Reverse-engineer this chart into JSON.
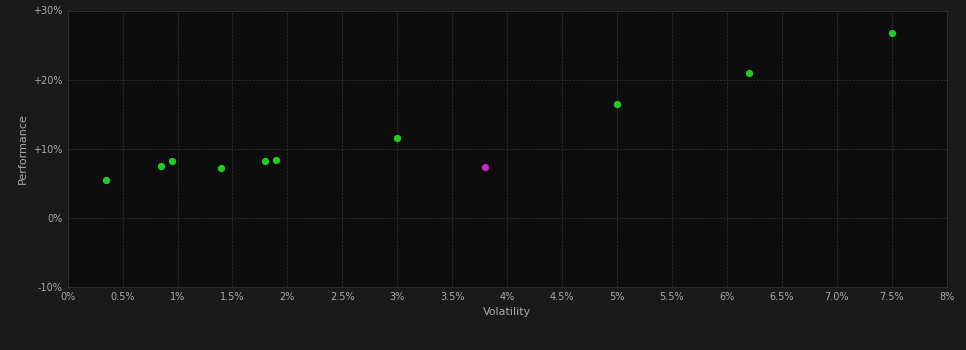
{
  "xlabel": "Volatility",
  "ylabel": "Performance",
  "background_color": "#1a1a1a",
  "plot_bg_color": "#0d0d0d",
  "grid_color": "#333344",
  "text_color": "#aaaaaa",
  "axis_color": "#333333",
  "xlim": [
    0.0,
    0.08
  ],
  "ylim": [
    -0.1,
    0.3
  ],
  "green_points": [
    [
      0.0035,
      0.055
    ],
    [
      0.0085,
      0.075
    ],
    [
      0.0095,
      0.082
    ],
    [
      0.014,
      0.072
    ],
    [
      0.018,
      0.083
    ],
    [
      0.019,
      0.084
    ],
    [
      0.03,
      0.115
    ],
    [
      0.05,
      0.165
    ],
    [
      0.062,
      0.21
    ],
    [
      0.075,
      0.268
    ]
  ],
  "magenta_points": [
    [
      0.038,
      0.073
    ]
  ],
  "green_color": "#22cc22",
  "magenta_color": "#cc22cc",
  "marker_size": 18
}
